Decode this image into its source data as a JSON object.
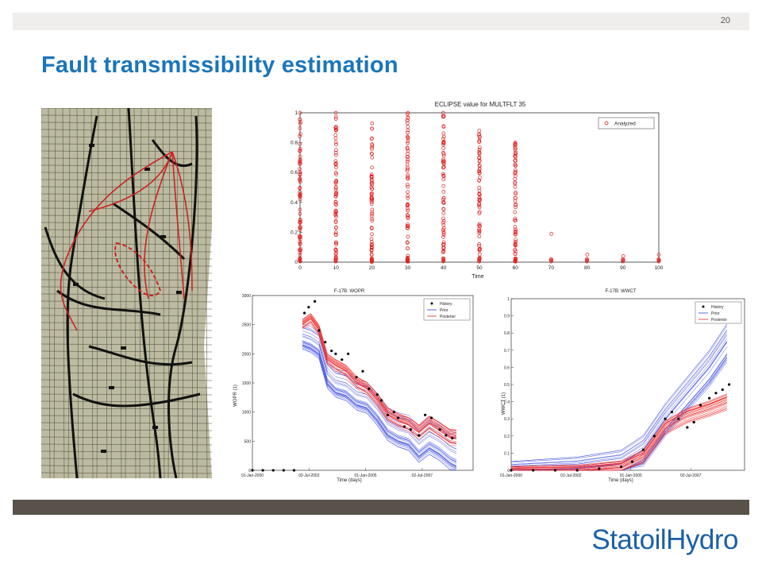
{
  "slide": {
    "number": "20",
    "title": "Fault transmissibility estimation",
    "logo": "StatoilHydro",
    "colors": {
      "title": "#1b75bb",
      "topbar": "#efeeec",
      "bottombar": "#58524a",
      "logo": "#1c60a8"
    }
  },
  "map_image": {
    "description_icon": "reservoir-grid-map",
    "fault_color": "#cc2222",
    "grid_color": "#b8b690"
  },
  "chart_data": [
    {
      "type": "scatter",
      "title": "ECLIPSE value for MULTFLT 35",
      "xlabel": "Time",
      "ylabel": "",
      "xlim": [
        0,
        100
      ],
      "ylim": [
        0,
        1
      ],
      "xticks": [
        0,
        10,
        20,
        30,
        40,
        50,
        60,
        70,
        80,
        90,
        100
      ],
      "yticks": [
        0,
        0.2,
        0.4,
        0.6,
        0.8,
        1
      ],
      "legend": "top-right",
      "series": [
        {
          "name": "Analyzed",
          "color": "#e02020",
          "marker": "circle",
          "x_values": [
            0,
            10,
            20,
            30,
            40,
            50,
            60,
            70,
            80,
            90,
            100
          ],
          "y_max": [
            1.0,
            1.0,
            0.93,
            1.0,
            1.0,
            0.88,
            0.8,
            0.19,
            0.05,
            0.04,
            0.05
          ]
        }
      ]
    },
    {
      "type": "line",
      "title": "F-17B: WOPR",
      "xlabel": "Time (days)",
      "ylabel": "WOPR (1)",
      "ylim": [
        0,
        3000
      ],
      "yticks": [
        0,
        500,
        1000,
        1500,
        2000,
        2500,
        3000
      ],
      "xticks": [
        "01-Jan-2000",
        "02-Jul-2002",
        "01-Jan-2005",
        "02-Jul-2007"
      ],
      "legend": "top-right",
      "series": [
        {
          "name": "History",
          "color": "#000000",
          "style": "dots"
        },
        {
          "name": "Prior",
          "color": "#3344dd",
          "style": "lines"
        },
        {
          "name": "Posterior",
          "color": "#ee2222",
          "style": "lines"
        }
      ],
      "history": [
        [
          0,
          0
        ],
        [
          0.5,
          0
        ],
        [
          1,
          0
        ],
        [
          1.5,
          0
        ],
        [
          2,
          0
        ],
        [
          2.5,
          2700
        ],
        [
          2.7,
          2800
        ],
        [
          3,
          2900
        ],
        [
          3.2,
          2400
        ],
        [
          3.5,
          2200
        ],
        [
          3.8,
          2050
        ],
        [
          4,
          2000
        ],
        [
          4.3,
          1900
        ],
        [
          4.6,
          2000
        ],
        [
          5,
          1600
        ],
        [
          5.3,
          1700
        ],
        [
          5.6,
          1400
        ],
        [
          6,
          1300
        ],
        [
          6.2,
          1200
        ],
        [
          6.5,
          950
        ],
        [
          6.8,
          1000
        ],
        [
          7,
          900
        ],
        [
          7.3,
          750
        ],
        [
          7.6,
          700
        ],
        [
          8,
          600
        ],
        [
          8.3,
          950
        ],
        [
          8.6,
          900
        ],
        [
          9,
          700
        ],
        [
          9.3,
          600
        ],
        [
          9.6,
          550
        ]
      ],
      "prior_mean": [
        [
          2.4,
          2300
        ],
        [
          2.8,
          2250
        ],
        [
          3.2,
          2150
        ],
        [
          3.6,
          1650
        ],
        [
          4,
          1500
        ],
        [
          4.5,
          1450
        ],
        [
          5,
          1300
        ],
        [
          5.5,
          1250
        ],
        [
          6,
          1050
        ],
        [
          6.5,
          800
        ],
        [
          7,
          700
        ],
        [
          7.5,
          650
        ],
        [
          8,
          450
        ],
        [
          8.5,
          600
        ],
        [
          9,
          500
        ],
        [
          9.5,
          350
        ],
        [
          9.8,
          300
        ]
      ],
      "posterior_mean": [
        [
          2.4,
          2500
        ],
        [
          2.8,
          2600
        ],
        [
          3.2,
          2400
        ],
        [
          3.6,
          1900
        ],
        [
          4,
          1800
        ],
        [
          4.5,
          1700
        ],
        [
          5,
          1500
        ],
        [
          5.5,
          1400
        ],
        [
          6,
          1200
        ],
        [
          6.5,
          950
        ],
        [
          7,
          850
        ],
        [
          7.5,
          780
        ],
        [
          8,
          650
        ],
        [
          8.5,
          800
        ],
        [
          9,
          680
        ],
        [
          9.5,
          560
        ],
        [
          9.8,
          550
        ]
      ]
    },
    {
      "type": "line",
      "title": "F-17B: WWCT",
      "xlabel": "Time (days)",
      "ylabel": "WWCT (1)",
      "ylim": [
        0,
        1
      ],
      "yticks": [
        0,
        0.1,
        0.2,
        0.3,
        0.4,
        0.5,
        0.6,
        0.7,
        0.8,
        0.9,
        1
      ],
      "xticks": [
        "01-Jan-2000",
        "02-Jul-2002",
        "01-Jan-2005",
        "02-Jul-2007"
      ],
      "legend": "top-right",
      "series": [
        {
          "name": "History",
          "color": "#000000",
          "style": "dots"
        },
        {
          "name": "Prior",
          "color": "#3344dd",
          "style": "lines"
        },
        {
          "name": "Posterior",
          "color": "#ee2222",
          "style": "lines"
        }
      ],
      "history": [
        [
          0,
          0
        ],
        [
          1,
          0
        ],
        [
          2,
          0
        ],
        [
          3,
          0
        ],
        [
          4,
          0.01
        ],
        [
          5,
          0.02
        ],
        [
          5.5,
          0.05
        ],
        [
          6,
          0.12
        ],
        [
          6.5,
          0.2
        ],
        [
          7,
          0.3
        ],
        [
          7.3,
          0.34
        ],
        [
          7.6,
          0.3
        ],
        [
          8,
          0.25
        ],
        [
          8.3,
          0.28
        ],
        [
          8.6,
          0.38
        ],
        [
          9,
          0.42
        ],
        [
          9.3,
          0.45
        ],
        [
          9.6,
          0.47
        ],
        [
          9.9,
          0.5
        ]
      ],
      "prior_mean": [
        [
          0,
          0
        ],
        [
          3,
          0.01
        ],
        [
          5,
          0.04
        ],
        [
          6,
          0.12
        ],
        [
          7,
          0.3
        ],
        [
          8,
          0.45
        ],
        [
          9,
          0.6
        ],
        [
          9.8,
          0.75
        ]
      ],
      "posterior_mean": [
        [
          0,
          0
        ],
        [
          3,
          0
        ],
        [
          5,
          0.02
        ],
        [
          6,
          0.08
        ],
        [
          7,
          0.25
        ],
        [
          8,
          0.32
        ],
        [
          9,
          0.36
        ],
        [
          9.8,
          0.4
        ]
      ]
    }
  ]
}
